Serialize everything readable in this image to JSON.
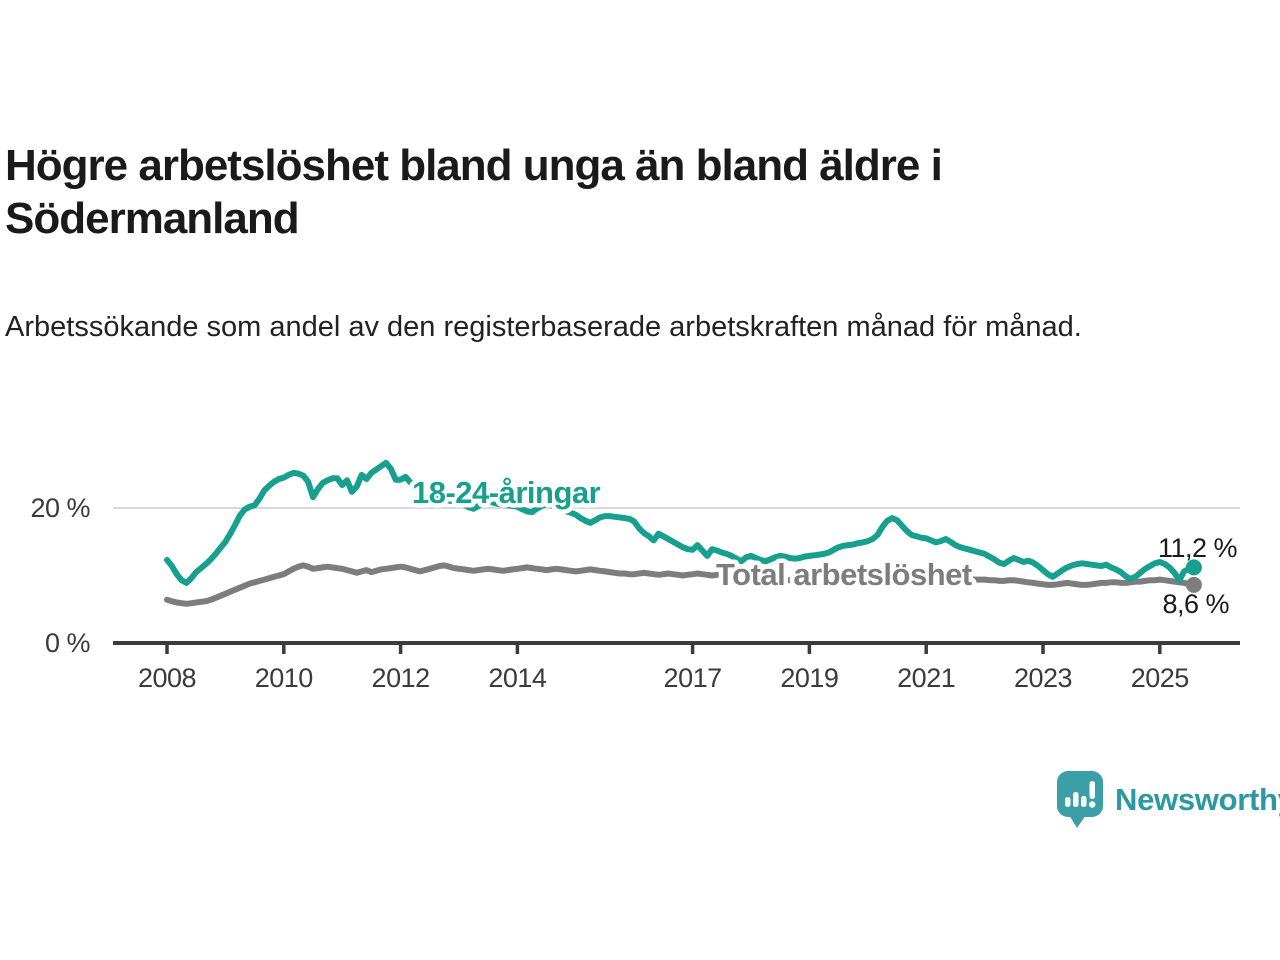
{
  "chart_data": {
    "type": "line",
    "title": "Högre arbetslöshet bland unga än bland äldre i Södermanland",
    "subtitle": "Arbetssökande som andel av den registerbaserade arbetskraften månad för månad.",
    "x_start_year": 2008,
    "x_interval": "monthly",
    "x_end": "aug 2025",
    "x_ticks": [
      2008,
      2010,
      2012,
      2014,
      2017,
      2019,
      2021,
      2023,
      2025
    ],
    "y_ticks": [
      {
        "value": 20,
        "label": "20 %",
        "grid": true
      },
      {
        "value": 0,
        "label": "0 %",
        "grid": false
      }
    ],
    "ylim": [
      0,
      28
    ],
    "grid": "horizontal-at-20-only",
    "legend_position": "inline-labels-on-lines",
    "series": [
      {
        "name": "18-24-åringar",
        "color": "#17a08d",
        "end_label": "11,2 %",
        "last_value": 11.2,
        "values": [
          12.3,
          11.4,
          10.2,
          9.3,
          8.9,
          9.6,
          10.5,
          11.1,
          11.7,
          12.4,
          13.2,
          14.1,
          15.0,
          16.2,
          17.5,
          18.9,
          19.8,
          20.2,
          20.4,
          21.4,
          22.6,
          23.3,
          23.9,
          24.3,
          24.5,
          24.9,
          25.2,
          25.1,
          24.8,
          23.9,
          21.6,
          22.8,
          23.7,
          24.1,
          24.4,
          24.4,
          23.4,
          24.1,
          22.4,
          23.2,
          24.9,
          24.3,
          25.2,
          25.7,
          26.2,
          26.7,
          25.8,
          24.2,
          24.2,
          24.6,
          23.8,
          23.2,
          22.8,
          22.4,
          22.0,
          21.7,
          21.5,
          21.3,
          21.1,
          21.0,
          20.8,
          20.5,
          20.1,
          19.9,
          20.3,
          20.7,
          21.0,
          20.8,
          20.6,
          20.5,
          20.4,
          20.3,
          20.2,
          19.8,
          19.5,
          19.4,
          19.9,
          20.3,
          20.6,
          20.4,
          20.1,
          19.8,
          19.5,
          19.3,
          19.0,
          18.5,
          18.1,
          17.8,
          18.2,
          18.6,
          18.8,
          18.8,
          18.7,
          18.6,
          18.5,
          18.4,
          18.0,
          17.0,
          16.3,
          15.8,
          15.2,
          16.2,
          15.8,
          15.4,
          15.0,
          14.6,
          14.2,
          13.9,
          13.8,
          14.5,
          13.7,
          12.9,
          13.9,
          13.7,
          13.4,
          13.2,
          12.9,
          12.5,
          12.1,
          12.7,
          12.9,
          12.6,
          12.3,
          12.1,
          12.4,
          12.7,
          12.9,
          12.8,
          12.6,
          12.5,
          12.6,
          12.8,
          12.9,
          13.0,
          13.1,
          13.2,
          13.4,
          13.8,
          14.2,
          14.4,
          14.5,
          14.6,
          14.8,
          14.9,
          15.1,
          15.4,
          16.0,
          17.2,
          18.1,
          18.5,
          18.2,
          17.4,
          16.6,
          16.0,
          15.8,
          15.6,
          15.5,
          15.2,
          14.9,
          15.1,
          15.4,
          15.0,
          14.5,
          14.2,
          14.0,
          13.8,
          13.6,
          13.4,
          13.2,
          12.8,
          12.4,
          11.9,
          11.7,
          12.2,
          12.6,
          12.3,
          12.0,
          12.2,
          11.9,
          11.4,
          10.8,
          10.2,
          9.8,
          10.3,
          10.8,
          11.2,
          11.5,
          11.7,
          11.8,
          11.7,
          11.6,
          11.5,
          11.4,
          11.6,
          11.2,
          10.9,
          10.5,
          9.9,
          9.5,
          9.8,
          10.4,
          11.0,
          11.4,
          11.8,
          12.0,
          11.7,
          11.2,
          10.4,
          9.3,
          10.6,
          11.0,
          11.2
        ]
      },
      {
        "name": "Total arbetslöshet",
        "color": "#7d7d7d",
        "end_label": "8,6 %",
        "last_value": 8.6,
        "values": [
          6.4,
          6.2,
          6.0,
          5.9,
          5.8,
          5.9,
          6.0,
          6.1,
          6.2,
          6.4,
          6.7,
          7.0,
          7.3,
          7.6,
          7.9,
          8.2,
          8.5,
          8.8,
          9.0,
          9.2,
          9.4,
          9.6,
          9.8,
          10.0,
          10.2,
          10.6,
          11.0,
          11.3,
          11.5,
          11.3,
          11.0,
          11.1,
          11.2,
          11.3,
          11.2,
          11.1,
          11.0,
          10.8,
          10.6,
          10.4,
          10.6,
          10.8,
          10.5,
          10.7,
          10.9,
          11.0,
          11.1,
          11.2,
          11.3,
          11.2,
          11.0,
          10.8,
          10.6,
          10.8,
          11.0,
          11.2,
          11.4,
          11.5,
          11.3,
          11.1,
          11.0,
          10.9,
          10.8,
          10.7,
          10.8,
          10.9,
          11.0,
          10.9,
          10.8,
          10.7,
          10.8,
          10.9,
          11.0,
          11.1,
          11.2,
          11.1,
          11.0,
          10.9,
          10.8,
          10.9,
          11.0,
          10.9,
          10.8,
          10.7,
          10.6,
          10.7,
          10.8,
          10.9,
          10.8,
          10.7,
          10.6,
          10.5,
          10.4,
          10.3,
          10.3,
          10.2,
          10.2,
          10.3,
          10.4,
          10.3,
          10.2,
          10.1,
          10.2,
          10.3,
          10.2,
          10.1,
          10.0,
          10.1,
          10.2,
          10.3,
          10.2,
          10.1,
          10.0,
          10.1,
          10.2,
          10.1,
          10.0,
          9.9,
          9.8,
          9.8,
          9.8,
          9.7,
          9.6,
          9.5,
          9.5,
          9.4,
          9.4,
          9.3,
          9.3,
          9.2,
          9.2,
          9.1,
          9.1,
          9.0,
          9.0,
          9.0,
          9.1,
          9.1,
          9.2,
          9.2,
          9.3,
          9.3,
          9.4,
          9.5,
          9.6,
          9.7,
          10.0,
          10.4,
          10.7,
          10.8,
          10.7,
          10.6,
          10.5,
          10.4,
          10.3,
          10.2,
          10.2,
          10.1,
          10.0,
          9.9,
          9.8,
          9.7,
          9.6,
          9.6,
          9.5,
          9.5,
          9.4,
          9.4,
          9.4,
          9.3,
          9.3,
          9.2,
          9.2,
          9.3,
          9.3,
          9.2,
          9.1,
          9.0,
          8.9,
          8.8,
          8.7,
          8.6,
          8.6,
          8.7,
          8.8,
          8.9,
          8.8,
          8.7,
          8.6,
          8.6,
          8.7,
          8.8,
          8.9,
          8.9,
          9.0,
          9.0,
          8.9,
          8.9,
          9.0,
          9.1,
          9.1,
          9.2,
          9.3,
          9.3,
          9.4,
          9.3,
          9.2,
          9.1,
          9.0,
          8.9,
          8.7,
          8.6
        ]
      }
    ]
  },
  "footer": {
    "brand": "Newsworthy",
    "brand_color": "#2b99a3",
    "logo_color": "#3c9fa7"
  }
}
